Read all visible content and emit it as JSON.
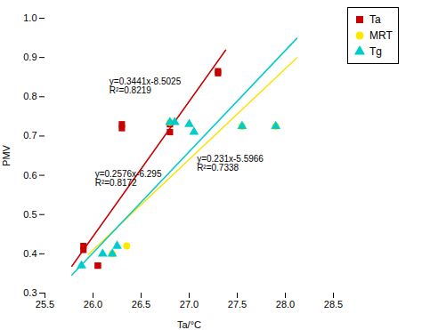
{
  "chart_data": {
    "type": "scatter",
    "xlabel": "Ta/°C",
    "ylabel": "PMV",
    "xlim": [
      25.5,
      28.5
    ],
    "ylim": [
      0.3,
      1.0
    ],
    "xticks": [
      25.5,
      {
        "value": 26,
        "label": "26.0"
      },
      26.5,
      {
        "value": 27,
        "label": "27.0"
      },
      27.5,
      {
        "value": 28,
        "label": "28.0"
      },
      28.5
    ],
    "yticks": [
      0.3,
      0.4,
      0.5,
      0.6,
      0.7,
      0.8,
      0.9,
      {
        "value": 1,
        "label": "1.0"
      }
    ],
    "grid": false,
    "legend": "upper right",
    "series": [
      {
        "type": "line",
        "color": "#C80000",
        "x": [
          25.78,
          27.38
        ],
        "values": [
          0.368398,
          0.918958
        ]
      },
      {
        "type": "line",
        "color": "#FFE000",
        "x": [
          25.95,
          28.12
        ],
        "values": [
          0.39785,
          0.89912
        ]
      },
      {
        "type": "line",
        "color": "#00CCCC",
        "x": [
          25.78,
          28.12
        ],
        "values": [
          0.345928,
          0.948712
        ]
      },
      {
        "type": "scatter",
        "name": "Ta",
        "color": "#C80000",
        "marker": "square",
        "x": [
          25.9,
          25.9,
          26.05,
          26.05,
          26.3,
          26.3,
          26.8,
          26.8,
          27.3,
          27.3
        ],
        "values": [
          0.42,
          0.41,
          0.37,
          0.37,
          0.73,
          0.72,
          0.73,
          0.71,
          0.86,
          0.865
        ]
      },
      {
        "type": "scatter",
        "name": "MRT",
        "color": "#FFE800",
        "marker": "circle",
        "x": [
          26.2,
          26.35,
          26.8,
          27.55,
          27.9
        ],
        "values": [
          0.4,
          0.42,
          0.735,
          0.725,
          0.725
        ]
      },
      {
        "type": "scatter",
        "name": "Tg",
        "color": "#00CCCC",
        "marker": "triangle",
        "x": [
          25.88,
          26.1,
          26.2,
          26.25,
          26.8,
          26.85,
          27.0,
          27.05,
          27.55,
          27.9
        ],
        "values": [
          0.37,
          0.4,
          0.4,
          0.42,
          0.735,
          0.735,
          0.73,
          0.71,
          0.725,
          0.725
        ]
      }
    ],
    "annotations": [
      {
        "text": "y=0.3441x-8.5025\nR²=0.8219",
        "x": 26.17,
        "y": 0.836
      },
      {
        "text": "y=0.2576x-6.295\nR²=0.8172",
        "x": 26.02,
        "y": 0.6
      },
      {
        "text": "y=0.231x-5.5966\nR²=0.7338",
        "x": 27.08,
        "y": 0.638
      }
    ]
  }
}
